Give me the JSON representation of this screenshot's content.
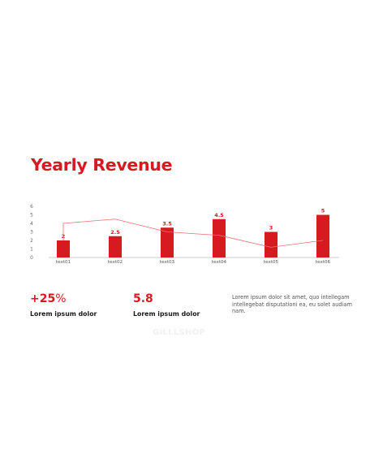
{
  "title": "Yearly Revenue",
  "chart_data": {
    "type": "bar",
    "categories": [
      "text01",
      "text02",
      "text03",
      "text04",
      "text05",
      "text06"
    ],
    "values": [
      2,
      2.5,
      3.5,
      4.5,
      3,
      5
    ],
    "data_labels": [
      "2",
      "2.5",
      "3.5",
      "4.5",
      "3",
      "5"
    ],
    "line_values": [
      4,
      4.5,
      3,
      2.6,
      1.2,
      2
    ],
    "ylim": [
      0,
      6
    ],
    "yticks": [
      "0",
      "1",
      "2",
      "3",
      "4",
      "5",
      "6"
    ],
    "grid": false,
    "bar_color": "#d71921",
    "line_color": "#e57373"
  },
  "stats": [
    {
      "value_main": "+25",
      "value_suffix": "%",
      "label": "Lorem ipsum dolor"
    },
    {
      "value_main": "5.8",
      "value_suffix": "",
      "label": "Lorem ipsum dolor"
    }
  ],
  "description": "Lorem ipsum dolor sit amet, quo intellegam intellegebat disputationi ea, eu solet audiam nam.",
  "watermark": "GILLLSHOP"
}
